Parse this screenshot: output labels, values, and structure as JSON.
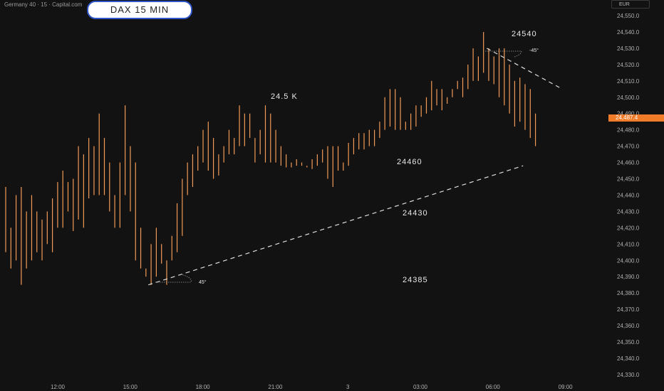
{
  "header": {
    "symbol_title": "Germany 40 · 15 · Capital.com",
    "title_badge": "DAX 15 MIN",
    "currency": "EUR",
    "last_price": "24,487.4"
  },
  "annotations": {
    "level_high": "24540",
    "round_level": "24.5 K",
    "level_mid": "24460",
    "level_low_mid": "24430",
    "level_low": "24385",
    "angle_bottom": "45°",
    "angle_top": "-45°"
  },
  "colors": {
    "background": "#121212",
    "bar": "#f29a55",
    "price_tag": "#f07c2a",
    "badge_border": "#2f56c8",
    "trendline": "#dddddd"
  },
  "chart_data": {
    "type": "ohlc",
    "y_tick_labels": [
      "24,550.0",
      "24,540.0",
      "24,530.0",
      "24,520.0",
      "24,510.0",
      "24,500.0",
      "24,490.0",
      "24,480.0",
      "24,470.0",
      "24,460.0",
      "24,450.0",
      "24,440.0",
      "24,430.0",
      "24,420.0",
      "24,410.0",
      "24,400.0",
      "24,390.0",
      "24,380.0",
      "24,370.0",
      "24,360.0",
      "24,350.0",
      "24,340.0",
      "24,330.0"
    ],
    "x_tick_labels": [
      "12:00",
      "15:00",
      "18:00",
      "21:00",
      "3",
      "03:00",
      "06:00",
      "09:00"
    ],
    "ylim": [
      24325,
      24555
    ],
    "bars_interval_minutes": 15,
    "bars_high": [
      24445,
      24420,
      24440,
      24445,
      24430,
      24440,
      24430,
      24425,
      24430,
      24438,
      24448,
      24455,
      24448,
      24450,
      24470,
      24465,
      24475,
      24470,
      24490,
      24475,
      24460,
      24440,
      24460,
      24495,
      24470,
      24460,
      24420,
      24395,
      24410,
      24420,
      24410,
      24400,
      24415,
      24435,
      24450,
      24460,
      24465,
      24470,
      24480,
      24485,
      24475,
      24465,
      24470,
      24480,
      24475,
      24495,
      24490,
      24490,
      24475,
      24480,
      24495,
      24490,
      24480,
      24470,
      24465,
      24460,
      24462,
      24460,
      24458,
      24462,
      24465,
      24468,
      24470,
      24470,
      24470,
      24460,
      24472,
      24475,
      24478,
      24478,
      24480,
      24480,
      24485,
      24500,
      24505,
      24505,
      24500,
      24485,
      24490,
      24495,
      24495,
      24500,
      24510,
      24505,
      24505,
      24500,
      24505,
      24510,
      24512,
      24520,
      24530,
      24525,
      24540,
      24530,
      24525,
      24530,
      24530,
      24520,
      24510,
      24512,
      24508,
      24505,
      24490
    ],
    "bars_low": [
      24405,
      24395,
      24400,
      24385,
      24395,
      24400,
      24405,
      24400,
      24410,
      24405,
      24420,
      24420,
      24430,
      24418,
      24425,
      24420,
      24438,
      24440,
      24440,
      24440,
      24430,
      24420,
      24420,
      24440,
      24430,
      24400,
      24395,
      24390,
      24385,
      24390,
      24398,
      24385,
      24400,
      24405,
      24415,
      24440,
      24445,
      24455,
      24460,
      24455,
      24450,
      24452,
      24460,
      24465,
      24465,
      24470,
      24470,
      24475,
      24460,
      24465,
      24460,
      24460,
      24460,
      24458,
      24457,
      24457,
      24458,
      24458,
      24457,
      24456,
      24458,
      24460,
      24450,
      24445,
      24455,
      24455,
      24458,
      24465,
      24468,
      24468,
      24470,
      24470,
      24475,
      24480,
      24482,
      24480,
      24480,
      24480,
      24480,
      24482,
      24488,
      24490,
      24492,
      24495,
      24492,
      24496,
      24500,
      24505,
      24500,
      24505,
      24510,
      24510,
      24515,
      24510,
      24508,
      24500,
      24495,
      24490,
      24482,
      24485,
      24480,
      24475,
      24470
    ],
    "trendlines": [
      {
        "type": "trend_line",
        "from": {
          "x": "15:45",
          "y": 24385
        },
        "to": {
          "x": "07:15",
          "y": 24458
        }
      },
      {
        "type": "trend_line",
        "from": {
          "x": "05:45",
          "y": 24530
        },
        "to": {
          "x": "08:45",
          "y": 24506
        }
      }
    ]
  }
}
